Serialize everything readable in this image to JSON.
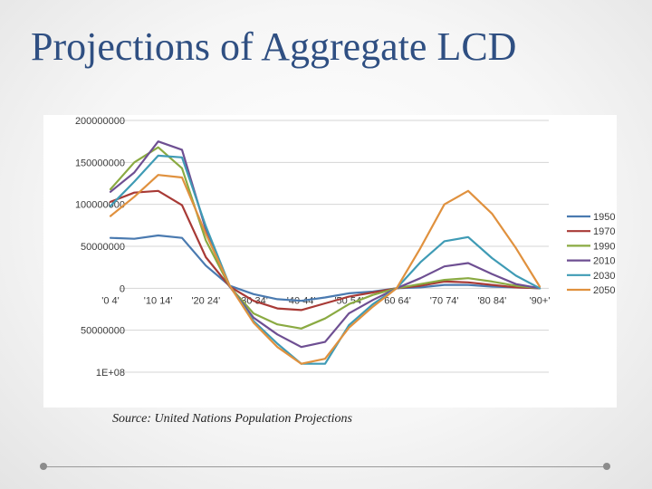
{
  "slide": {
    "title": "Projections of Aggregate LCD",
    "source": "Source: United Nations Population Projections"
  },
  "chart_data": {
    "type": "line",
    "title": "",
    "xlabel": "",
    "ylabel": "",
    "ylim": [
      -100000000,
      200000000
    ],
    "y_ticks": [
      200000000,
      150000000,
      100000000,
      50000000,
      0,
      -50000000,
      -100000000
    ],
    "y_tick_labels": [
      "200000000",
      "150000000",
      "100000000",
      "50000000",
      "0",
      "50000000",
      "1E+08"
    ],
    "x_labels": [
      "'0 4'",
      "'10 14'",
      "'20 24'",
      "'30 34'",
      "'40 44'",
      "'50 54'",
      "'60 64'",
      "'70 74'",
      "'80 84'",
      "'90+'"
    ],
    "n_points": 19,
    "grid": true,
    "legend_position": "right",
    "series": [
      {
        "name": "1950",
        "color": "#4a7ab0",
        "values": [
          60000000,
          59000000,
          63000000,
          60000000,
          27000000,
          3000000,
          -7000000,
          -13000000,
          -15000000,
          -11000000,
          -6000000,
          -4000000,
          0,
          1000000,
          4000000,
          4000000,
          2000000,
          1000000,
          0
        ]
      },
      {
        "name": "1970",
        "color": "#a83a36",
        "values": [
          103000000,
          114000000,
          116000000,
          99000000,
          37000000,
          2000000,
          -15000000,
          -24000000,
          -26000000,
          -18000000,
          -10000000,
          -5000000,
          0,
          3000000,
          8000000,
          7000000,
          4000000,
          1000000,
          0
        ]
      },
      {
        "name": "1990",
        "color": "#8aaa42",
        "values": [
          118000000,
          150000000,
          168000000,
          143000000,
          57000000,
          2000000,
          -30000000,
          -43000000,
          -48000000,
          -36000000,
          -19000000,
          -8000000,
          0,
          5000000,
          10000000,
          12000000,
          8000000,
          3000000,
          0
        ]
      },
      {
        "name": "2010",
        "color": "#6e4f92",
        "values": [
          115000000,
          138000000,
          175000000,
          165000000,
          70000000,
          2000000,
          -35000000,
          -55000000,
          -70000000,
          -64000000,
          -30000000,
          -14000000,
          0,
          12000000,
          26000000,
          30000000,
          17000000,
          5000000,
          0
        ]
      },
      {
        "name": "2030",
        "color": "#3f9bb5",
        "values": [
          98000000,
          127000000,
          158000000,
          156000000,
          74000000,
          3000000,
          -39000000,
          -66000000,
          -90000000,
          -90000000,
          -44000000,
          -19000000,
          0,
          31000000,
          56000000,
          61000000,
          36000000,
          15000000,
          0
        ]
      },
      {
        "name": "2050",
        "color": "#e0913e",
        "values": [
          86000000,
          109000000,
          135000000,
          132000000,
          65000000,
          3000000,
          -41000000,
          -70000000,
          -90000000,
          -84000000,
          -47000000,
          -22000000,
          0,
          48000000,
          100000000,
          116000000,
          89000000,
          48000000,
          2000000
        ]
      }
    ]
  }
}
